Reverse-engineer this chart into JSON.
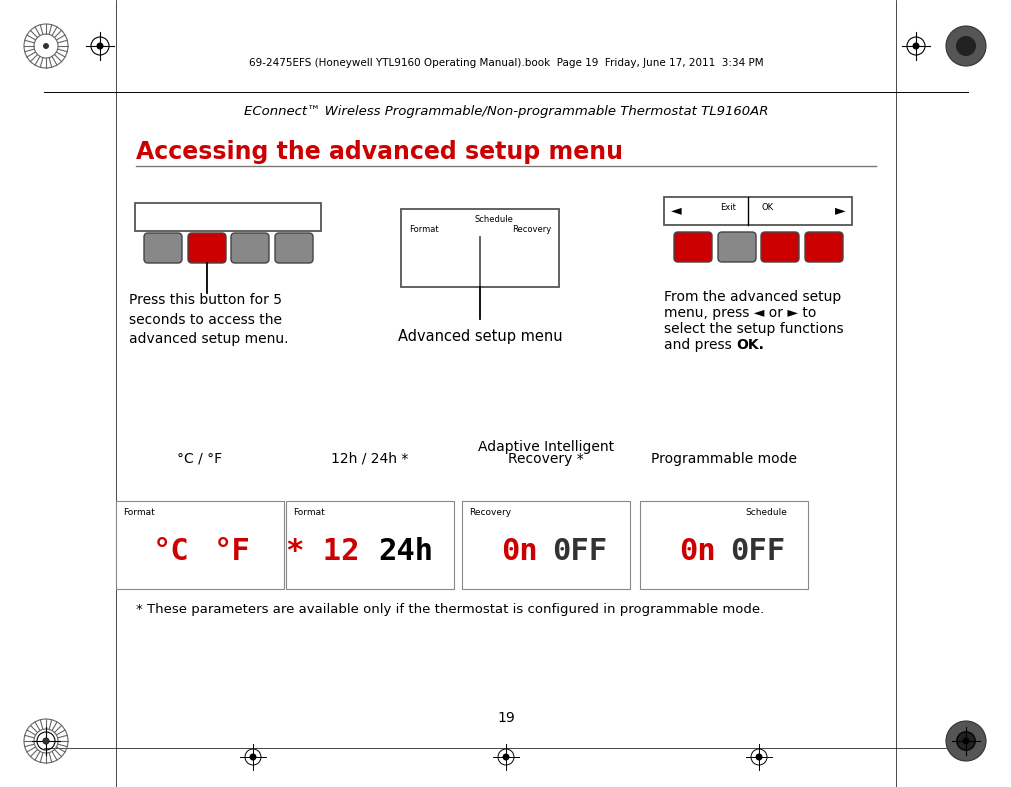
{
  "page_header": "69-2475EFS (Honeywell YTL9160 Operating Manual).book  Page 19  Friday, June 17, 2011  3:34 PM",
  "doc_title": "EConnect™ Wireless Programmable/Non-programmable Thermostat TL9160AR",
  "section_title": "Accessing the advanced setup menu",
  "bg_color": "#ffffff",
  "red_color": "#cc0000",
  "gray_color": "#888888",
  "border_color": "#555555",
  "caption1": "Press this button for 5\nseconds to access the\nadvanced setup menu.",
  "caption2": "Advanced setup menu",
  "caption3_line1": "From the advanced setup",
  "caption3_line2": "menu, press ◄ or ► to",
  "caption3_line3": "select the setup functions",
  "caption3_line4": "and press ",
  "caption3_bold": "OK.",
  "label1": "°C / °F",
  "label2": "12h / 24h *",
  "label3a": "Adaptive Intelligent",
  "label3b": "Recovery *",
  "label4": "Programmable mode",
  "footnote": "* These parameters are available only if the thermostat is configured in programmable mode.",
  "page_num": "19",
  "panel1_buttons": [
    "gray",
    "red",
    "gray",
    "gray"
  ],
  "panel3_buttons": [
    "red",
    "gray",
    "red",
    "red"
  ],
  "box1_left_red": "°C",
  "box1_right_red": "°F",
  "box1_label": "Format",
  "box2_red": "❖ 12",
  "box2_black": "24h",
  "box2_label": "Format",
  "box3_red": "0n",
  "box3_black": "0FF",
  "box3_label": "Recovery",
  "box4_red": "0n",
  "box4_black": "0FF",
  "box4_label": "Schedule"
}
